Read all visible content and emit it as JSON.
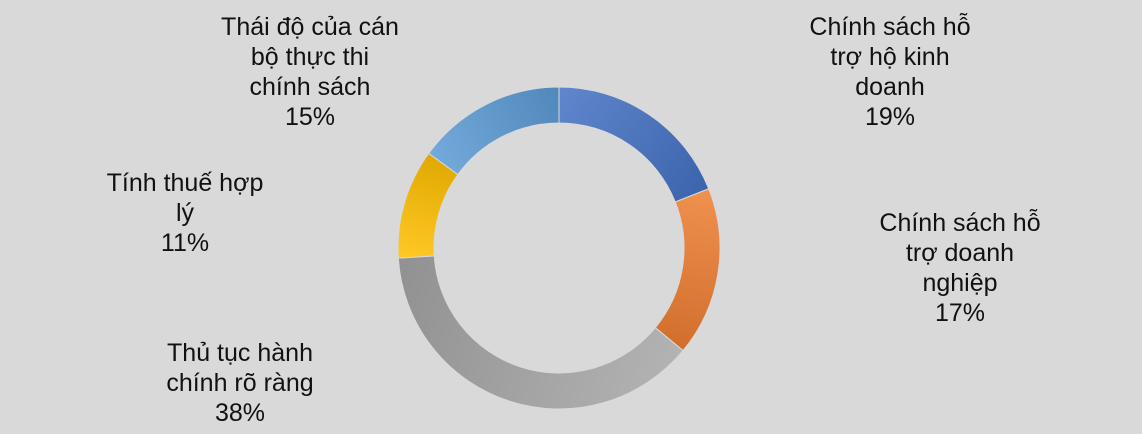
{
  "chart_data": {
    "type": "pie",
    "variant": "donut",
    "title": "",
    "slices": [
      {
        "label_lines": [
          "Chính sách hỗ",
          "trợ hộ kinh",
          "doanh"
        ],
        "percent_label": "19%",
        "value": 19,
        "color": "#4472c4"
      },
      {
        "label_lines": [
          "Chính sách hỗ",
          "trợ doanh",
          "nghiệp"
        ],
        "percent_label": "17%",
        "value": 17,
        "color": "#ed7d31"
      },
      {
        "label_lines": [
          "Thủ tục hành",
          "chính rõ ràng"
        ],
        "percent_label": "38%",
        "value": 38,
        "color": "#a5a5a5"
      },
      {
        "label_lines": [
          "Tính thuế hợp",
          "lý"
        ],
        "percent_label": "11%",
        "value": 11,
        "color": "#ffc000"
      },
      {
        "label_lines": [
          "Thái độ của cán",
          "bộ thực thi",
          "chính sách"
        ],
        "percent_label": "15%",
        "value": 15,
        "color": "#5b9bd5"
      }
    ],
    "start": "top",
    "direction": "clockwise",
    "legend": "none"
  }
}
